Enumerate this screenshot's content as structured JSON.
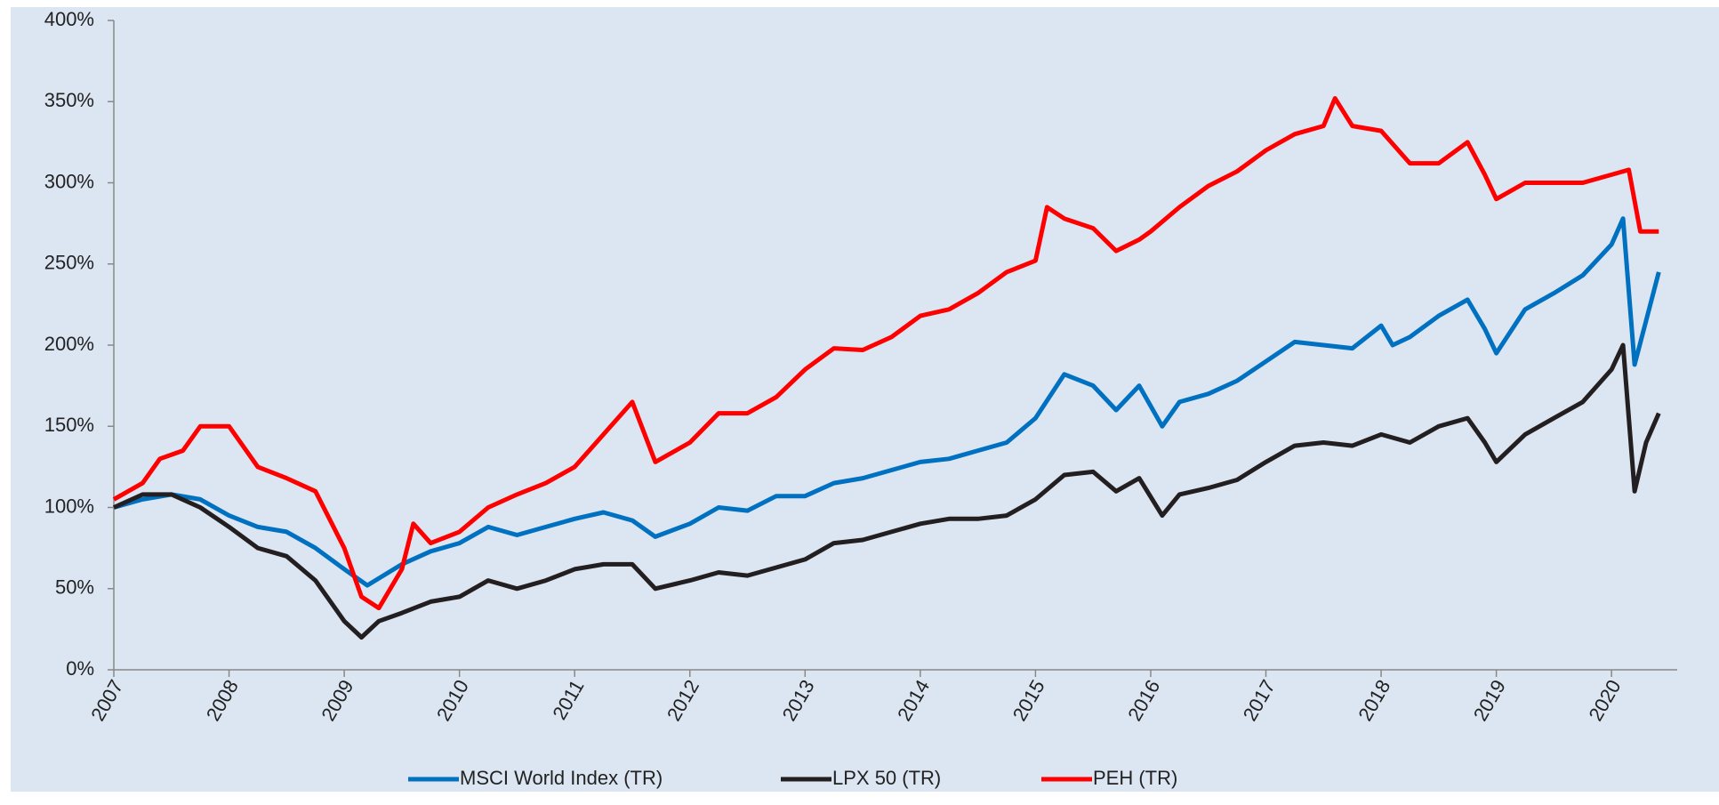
{
  "chart_data": {
    "type": "line",
    "xlim": [
      2007,
      2020.57
    ],
    "xticks": [
      2007,
      2008,
      2009,
      2010,
      2011,
      2012,
      2013,
      2014,
      2015,
      2016,
      2017,
      2018,
      2019,
      2020
    ],
    "ylim": [
      0,
      400
    ],
    "yticks": [
      {
        "value": 0,
        "label": "0%"
      },
      {
        "value": 50,
        "label": "50%"
      },
      {
        "value": 100,
        "label": "100%"
      },
      {
        "value": 150,
        "label": "150%"
      },
      {
        "value": 200,
        "label": "200%"
      },
      {
        "value": 250,
        "label": "250%"
      },
      {
        "value": 300,
        "label": "300%"
      },
      {
        "value": 350,
        "label": "350%"
      },
      {
        "value": 400,
        "label": "400%"
      }
    ],
    "legend": "bottom",
    "series": [
      {
        "name": "MSCI World Index (TR)",
        "color": "#0070c0",
        "x": [
          2007,
          2007.25,
          2007.5,
          2007.75,
          2008,
          2008.25,
          2008.5,
          2008.75,
          2009,
          2009.2,
          2009.5,
          2009.75,
          2010,
          2010.25,
          2010.5,
          2010.75,
          2011,
          2011.25,
          2011.5,
          2011.7,
          2012,
          2012.25,
          2012.5,
          2012.75,
          2013,
          2013.25,
          2013.5,
          2013.75,
          2014,
          2014.25,
          2014.5,
          2014.75,
          2015,
          2015.25,
          2015.5,
          2015.7,
          2015.9,
          2016.1,
          2016.25,
          2016.5,
          2016.75,
          2017,
          2017.25,
          2017.5,
          2017.75,
          2018,
          2018.1,
          2018.25,
          2018.5,
          2018.75,
          2018.9,
          2019,
          2019.25,
          2019.5,
          2019.75,
          2020,
          2020.1,
          2020.2,
          2020.3,
          2020.41
        ],
        "values": [
          100,
          105,
          108,
          105,
          95,
          88,
          85,
          75,
          62,
          52,
          65,
          73,
          78,
          88,
          83,
          88,
          93,
          97,
          92,
          82,
          90,
          100,
          98,
          107,
          107,
          115,
          118,
          123,
          128,
          130,
          135,
          140,
          155,
          182,
          175,
          160,
          175,
          150,
          165,
          170,
          178,
          190,
          202,
          200,
          198,
          212,
          200,
          205,
          218,
          228,
          210,
          195,
          222,
          232,
          243,
          262,
          278,
          188,
          215,
          245
        ]
      },
      {
        "name": "LPX 50 (TR)",
        "color": "#231f20",
        "x": [
          2007,
          2007.25,
          2007.5,
          2007.75,
          2008,
          2008.25,
          2008.5,
          2008.75,
          2009,
          2009.15,
          2009.3,
          2009.5,
          2009.75,
          2010,
          2010.25,
          2010.5,
          2010.75,
          2011,
          2011.25,
          2011.5,
          2011.7,
          2012,
          2012.25,
          2012.5,
          2012.75,
          2013,
          2013.25,
          2013.5,
          2013.75,
          2014,
          2014.25,
          2014.5,
          2014.75,
          2015,
          2015.25,
          2015.5,
          2015.7,
          2015.9,
          2016.1,
          2016.25,
          2016.5,
          2016.75,
          2017,
          2017.25,
          2017.5,
          2017.75,
          2018,
          2018.25,
          2018.5,
          2018.75,
          2018.9,
          2019,
          2019.25,
          2019.5,
          2019.75,
          2020,
          2020.1,
          2020.2,
          2020.3,
          2020.41
        ],
        "values": [
          100,
          108,
          108,
          100,
          88,
          75,
          70,
          55,
          30,
          20,
          30,
          35,
          42,
          45,
          55,
          50,
          55,
          62,
          65,
          65,
          50,
          55,
          60,
          58,
          63,
          68,
          78,
          80,
          85,
          90,
          93,
          93,
          95,
          105,
          120,
          122,
          110,
          118,
          95,
          108,
          112,
          117,
          128,
          138,
          140,
          138,
          145,
          140,
          150,
          155,
          140,
          128,
          145,
          155,
          165,
          185,
          200,
          110,
          140,
          158
        ]
      },
      {
        "name": "PEH (TR)",
        "color": "#ff0000",
        "x": [
          2007,
          2007.25,
          2007.4,
          2007.6,
          2007.75,
          2008,
          2008.25,
          2008.5,
          2008.75,
          2009,
          2009.15,
          2009.3,
          2009.5,
          2009.6,
          2009.75,
          2010,
          2010.25,
          2010.5,
          2010.75,
          2011,
          2011.25,
          2011.5,
          2011.7,
          2012,
          2012.25,
          2012.5,
          2012.75,
          2013,
          2013.25,
          2013.5,
          2013.75,
          2014,
          2014.25,
          2014.5,
          2014.75,
          2015,
          2015.1,
          2015.25,
          2015.5,
          2015.7,
          2015.9,
          2016,
          2016.25,
          2016.5,
          2016.75,
          2017,
          2017.25,
          2017.5,
          2017.6,
          2017.75,
          2018,
          2018.25,
          2018.5,
          2018.75,
          2018.9,
          2019,
          2019.25,
          2019.5,
          2019.75,
          2020,
          2020.15,
          2020.25,
          2020.41
        ],
        "values": [
          105,
          115,
          130,
          135,
          150,
          150,
          125,
          118,
          110,
          75,
          45,
          38,
          62,
          90,
          78,
          85,
          100,
          108,
          115,
          125,
          145,
          165,
          128,
          140,
          158,
          158,
          168,
          185,
          198,
          197,
          205,
          218,
          222,
          232,
          245,
          252,
          285,
          278,
          272,
          258,
          265,
          270,
          285,
          298,
          307,
          320,
          330,
          335,
          352,
          335,
          332,
          312,
          312,
          325,
          305,
          290,
          300,
          300,
          300,
          305,
          308,
          270,
          270
        ]
      }
    ]
  }
}
